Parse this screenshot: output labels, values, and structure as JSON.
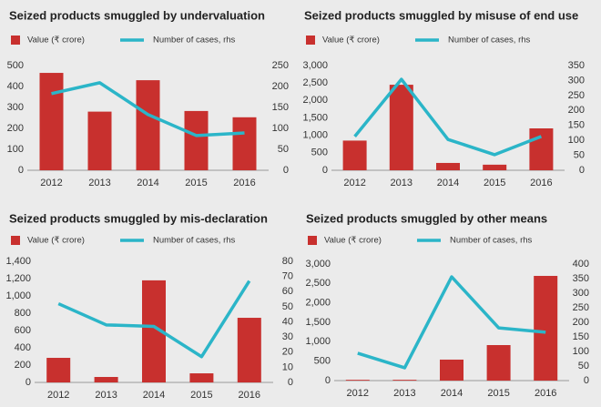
{
  "chart_data": [
    {
      "type": "bar-line",
      "title": "Seized products smuggled by undervaluation",
      "categories": [
        "2012",
        "2013",
        "2014",
        "2015",
        "2016"
      ],
      "series": [
        {
          "name": "Value (₹ crore)",
          "type": "bar",
          "color": "#c8302e",
          "values": [
            465,
            280,
            430,
            283,
            253
          ]
        },
        {
          "name": "Number of cases, rhs",
          "type": "line",
          "axis": "y2",
          "color": "#2bb5c8",
          "values": [
            183,
            209,
            133,
            83,
            89
          ]
        }
      ],
      "ylim": [
        0,
        500
      ],
      "yticks": [
        0,
        100,
        200,
        300,
        400,
        500
      ],
      "y2lim": [
        0,
        250
      ],
      "y2ticks": [
        0,
        50,
        100,
        150,
        200,
        250
      ]
    },
    {
      "type": "bar-line",
      "title": "Seized products smuggled by misuse of end use",
      "categories": [
        "2012",
        "2013",
        "2014",
        "2015",
        "2016"
      ],
      "series": [
        {
          "name": "Value (₹ crore)",
          "type": "bar",
          "color": "#c8302e",
          "values": [
            850,
            2450,
            210,
            160,
            1200
          ]
        },
        {
          "name": "Number of cases, rhs",
          "type": "line",
          "axis": "y2",
          "color": "#2bb5c8",
          "values": [
            113,
            304,
            103,
            52,
            113
          ]
        }
      ],
      "ylim": [
        0,
        3000
      ],
      "yticks": [
        0,
        500,
        {
          "value": 1000,
          "label": "1,000"
        },
        {
          "value": 1500,
          "label": "1,500"
        },
        {
          "value": 2000,
          "label": "2,000"
        },
        {
          "value": 2500,
          "label": "2,500"
        },
        {
          "value": 3000,
          "label": "3,000"
        }
      ],
      "y2lim": [
        0,
        350
      ],
      "y2ticks": [
        0,
        50,
        100,
        150,
        200,
        250,
        300,
        350
      ]
    },
    {
      "type": "bar-line",
      "title": "Seized products smuggled by mis-declaration",
      "categories": [
        "2012",
        "2013",
        "2014",
        "2015",
        "2016"
      ],
      "series": [
        {
          "name": "Value (₹ crore)",
          "type": "bar",
          "color": "#c8302e",
          "values": [
            284,
            63,
            1180,
            105,
            747
          ]
        },
        {
          "name": "Number of cases, rhs",
          "type": "line",
          "axis": "y2",
          "color": "#2bb5c8",
          "values": [
            52,
            38,
            37,
            17,
            67
          ]
        }
      ],
      "ylim": [
        0,
        1400
      ],
      "yticks": [
        0,
        200,
        400,
        600,
        800,
        {
          "value": 1000,
          "label": "1,000"
        },
        {
          "value": 1200,
          "label": "1,200"
        },
        {
          "value": 1400,
          "label": "1,400"
        }
      ],
      "y2lim": [
        0,
        80
      ],
      "y2ticks": [
        0,
        10,
        20,
        30,
        40,
        50,
        60,
        70,
        80
      ]
    },
    {
      "type": "bar-line",
      "title": "Seized products smuggled by other means",
      "categories": [
        "2012",
        "2013",
        "2014",
        "2015",
        "2016"
      ],
      "series": [
        {
          "name": "Value (₹ crore)",
          "type": "bar",
          "color": "#c8302e",
          "values": [
            20,
            20,
            540,
            914,
            2695
          ]
        },
        {
          "name": "Number of cases, rhs",
          "type": "line",
          "axis": "y2",
          "color": "#2bb5c8",
          "values": [
            94,
            44,
            356,
            181,
            166
          ]
        }
      ],
      "ylim": [
        0,
        3000
      ],
      "yticks": [
        0,
        500,
        {
          "value": 1000,
          "label": "1,000"
        },
        {
          "value": 1500,
          "label": "1,500"
        },
        {
          "value": 2000,
          "label": "2,000"
        },
        {
          "value": 2500,
          "label": "2,500"
        },
        {
          "value": 3000,
          "label": "3,000"
        }
      ],
      "y2lim": [
        0,
        400
      ],
      "y2ticks": [
        0,
        50,
        100,
        150,
        200,
        250,
        300,
        350,
        400
      ]
    }
  ]
}
